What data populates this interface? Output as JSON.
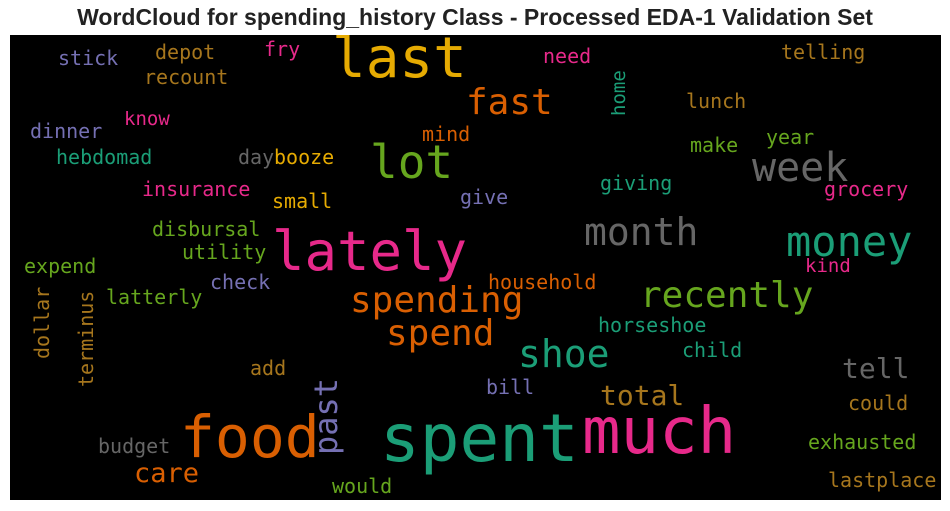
{
  "title": "WordCloud for spending_history Class - Processed EDA-1 Validation Set",
  "words": {
    "spent": {
      "text": "spent",
      "color": "#1b9e77"
    },
    "much": {
      "text": "much",
      "color": "#e7298a"
    },
    "food": {
      "text": "food",
      "color": "#d95f02"
    },
    "lately": {
      "text": "lately",
      "color": "#e7298a"
    },
    "last": {
      "text": "last",
      "color": "#e6ab02"
    },
    "lot": {
      "text": "lot",
      "color": "#66a61e"
    },
    "money": {
      "text": "money",
      "color": "#1b9e77"
    },
    "week": {
      "text": "week",
      "color": "#666666"
    },
    "month": {
      "text": "month",
      "color": "#666666"
    },
    "spending": {
      "text": "spending",
      "color": "#d95f02"
    },
    "recently": {
      "text": "recently",
      "color": "#66a61e"
    },
    "shoe": {
      "text": "shoe",
      "color": "#1b9e77"
    },
    "spend": {
      "text": "spend",
      "color": "#d95f02"
    },
    "fast": {
      "text": "fast",
      "color": "#d95f02"
    },
    "past": {
      "text": "past",
      "color": "#7570b3"
    },
    "tell": {
      "text": "tell",
      "color": "#666666"
    },
    "total": {
      "text": "total",
      "color": "#a6761d"
    },
    "care": {
      "text": "care",
      "color": "#d95f02"
    },
    "stick": {
      "text": "stick",
      "color": "#7570b3"
    },
    "depot": {
      "text": "depot",
      "color": "#a6761d"
    },
    "fry": {
      "text": "fry",
      "color": "#e7298a"
    },
    "need": {
      "text": "need",
      "color": "#e7298a"
    },
    "telling": {
      "text": "telling",
      "color": "#a6761d"
    },
    "recount": {
      "text": "recount",
      "color": "#a6761d"
    },
    "home": {
      "text": "home",
      "color": "#1b9e77"
    },
    "lunch": {
      "text": "lunch",
      "color": "#a6761d"
    },
    "know": {
      "text": "know",
      "color": "#e7298a"
    },
    "dinner": {
      "text": "dinner",
      "color": "#7570b3"
    },
    "mind": {
      "text": "mind",
      "color": "#d95f02"
    },
    "year": {
      "text": "year",
      "color": "#66a61e"
    },
    "make": {
      "text": "make",
      "color": "#66a61e"
    },
    "hebdomad": {
      "text": "hebdomad",
      "color": "#1b9e77"
    },
    "day": {
      "text": "day",
      "color": "#666666"
    },
    "booze": {
      "text": "booze",
      "color": "#e6ab02"
    },
    "insurance": {
      "text": "insurance",
      "color": "#e7298a"
    },
    "giving": {
      "text": "giving",
      "color": "#1b9e77"
    },
    "grocery": {
      "text": "grocery",
      "color": "#e7298a"
    },
    "small": {
      "text": "small",
      "color": "#e6ab02"
    },
    "give": {
      "text": "give",
      "color": "#7570b3"
    },
    "disbursal": {
      "text": "disbursal",
      "color": "#66a61e"
    },
    "utility": {
      "text": "utility",
      "color": "#66a61e"
    },
    "expend": {
      "text": "expend",
      "color": "#66a61e"
    },
    "kind": {
      "text": "kind",
      "color": "#e7298a"
    },
    "check": {
      "text": "check",
      "color": "#7570b3"
    },
    "household": {
      "text": "household",
      "color": "#d95f02"
    },
    "dollar": {
      "text": "dollar",
      "color": "#a6761d"
    },
    "terminus": {
      "text": "terminus",
      "color": "#a6761d"
    },
    "latterly": {
      "text": "latterly",
      "color": "#66a61e"
    },
    "horseshoe": {
      "text": "horseshoe",
      "color": "#1b9e77"
    },
    "child": {
      "text": "child",
      "color": "#1b9e77"
    },
    "add": {
      "text": "add",
      "color": "#a6761d"
    },
    "bill": {
      "text": "bill",
      "color": "#7570b3"
    },
    "could": {
      "text": "could",
      "color": "#a6761d"
    },
    "budget": {
      "text": "budget",
      "color": "#666666"
    },
    "exhausted": {
      "text": "exhausted",
      "color": "#66a61e"
    },
    "would": {
      "text": "would",
      "color": "#66a61e"
    },
    "lastplace": {
      "text": "lastplace",
      "color": "#a6761d"
    }
  }
}
